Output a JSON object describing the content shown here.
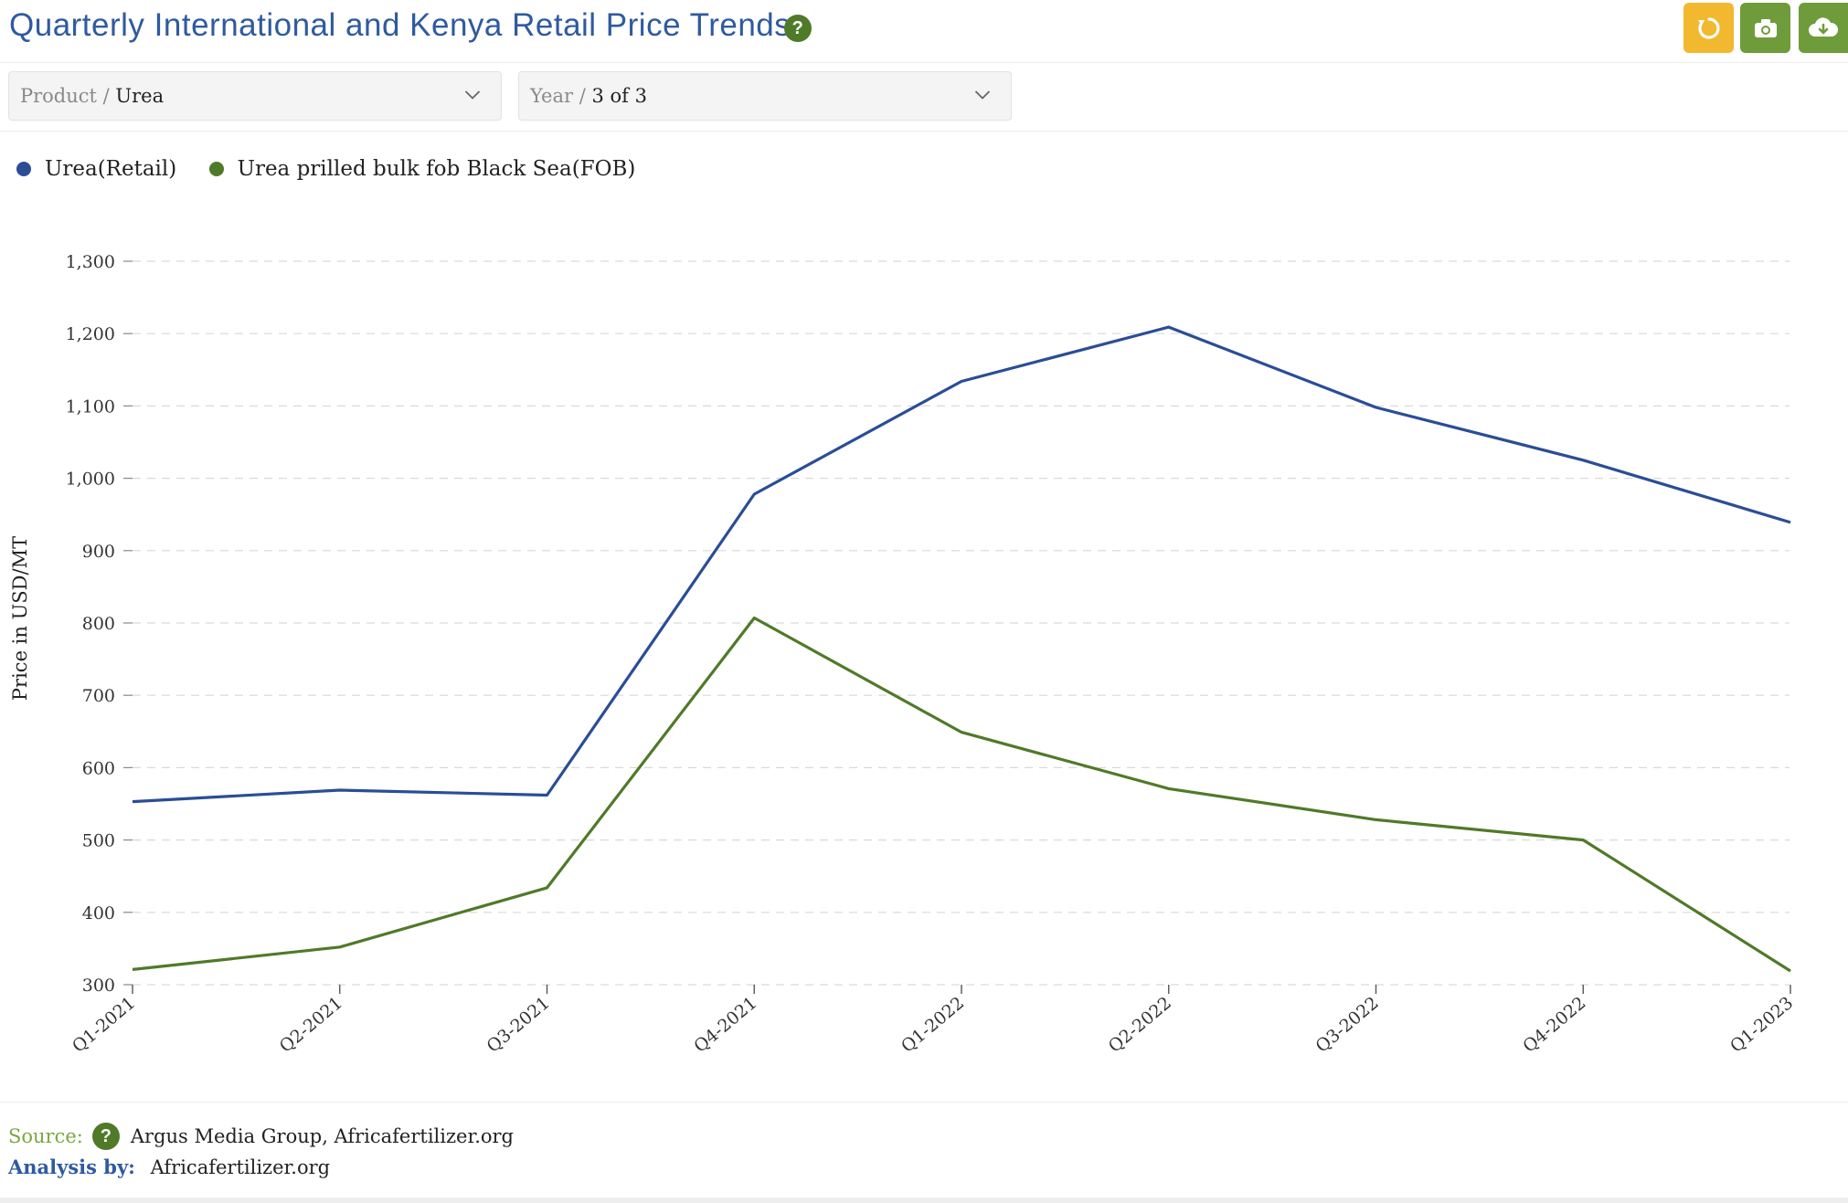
{
  "header": {
    "title": "Quarterly International and Kenya Retail Price Trends",
    "help_label": "?",
    "buttons": {
      "reset_icon": "refresh-icon",
      "photo_icon": "camera-icon",
      "download_icon": "cloud-download-icon"
    }
  },
  "filters": {
    "product": {
      "key": "Product / ",
      "value": "Urea"
    },
    "year": {
      "key": "Year / ",
      "value": "3 of 3"
    }
  },
  "colors": {
    "retail": "#2a4d96",
    "fob": "#4f7a28",
    "accent_yellow": "#f2b82f",
    "accent_green": "#6f9c3a"
  },
  "chart_data": {
    "type": "line",
    "title": "",
    "xlabel": "",
    "ylabel": "Price in USD/MT",
    "categories": [
      "Q1-2021",
      "Q2-2021",
      "Q3-2021",
      "Q4-2021",
      "Q1-2022",
      "Q2-2022",
      "Q3-2022",
      "Q4-2022",
      "Q1-2023"
    ],
    "ylim": [
      300,
      1300
    ],
    "yticks": [
      300,
      400,
      500,
      600,
      700,
      800,
      900,
      1000,
      1100,
      1200,
      1300
    ],
    "ytick_labels": [
      "300",
      "400",
      "500",
      "600",
      "700",
      "800",
      "900",
      "1,000",
      "1,100",
      "1,200",
      "1,300"
    ],
    "grid": true,
    "legend_position": "top-left",
    "series": [
      {
        "name": "Urea(Retail)",
        "color": "#2a4d96",
        "values": [
          553,
          569,
          562,
          978,
          1134,
          1209,
          1098,
          1025,
          939
        ]
      },
      {
        "name": "Urea prilled bulk fob Black Sea(FOB)",
        "color": "#4f7a28",
        "values": [
          321,
          352,
          434,
          807,
          649,
          571,
          528,
          500,
          319
        ]
      }
    ]
  },
  "footer": {
    "source_key": "Source:",
    "source_value": "Argus Media Group, Africafertilizer.org",
    "analysis_key": "Analysis by:",
    "analysis_value": "Africafertilizer.org"
  }
}
